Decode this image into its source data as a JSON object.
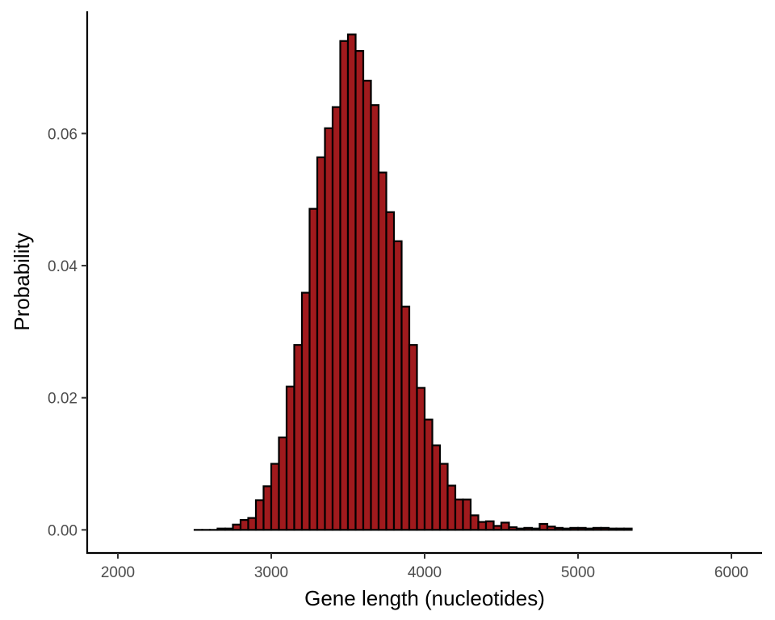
{
  "chart_data": {
    "type": "bar",
    "title": "",
    "xlabel": "Gene length (nucleotides)",
    "ylabel": "Probability",
    "xlim": [
      1800,
      6200
    ],
    "ylim": [
      -0.0035,
      0.0785
    ],
    "x_ticks": [
      2000,
      3000,
      4000,
      5000,
      6000
    ],
    "x_tick_labels": [
      "2000",
      "3000",
      "4000",
      "5000",
      "6000"
    ],
    "y_ticks": [
      0.0,
      0.02,
      0.04,
      0.06
    ],
    "y_tick_labels": [
      "0.00",
      "0.02",
      "0.04",
      "0.06"
    ],
    "grid": false,
    "legend": "none",
    "bin_width": 50,
    "bin_start": 2500,
    "values": [
      0.0,
      0.0,
      0.0,
      0.0002,
      0.0002,
      0.0008,
      0.0015,
      0.0018,
      0.0045,
      0.0066,
      0.01,
      0.014,
      0.0217,
      0.028,
      0.0359,
      0.0486,
      0.0564,
      0.0608,
      0.064,
      0.074,
      0.075,
      0.0725,
      0.068,
      0.0643,
      0.0541,
      0.0481,
      0.0437,
      0.0338,
      0.028,
      0.0215,
      0.0167,
      0.0128,
      0.01,
      0.0067,
      0.0046,
      0.0046,
      0.0022,
      0.0012,
      0.0013,
      0.0006,
      0.0011,
      0.0004,
      0.0002,
      0.0003,
      0.0002,
      0.0009,
      0.0005,
      0.0003,
      0.0002,
      0.0003,
      0.0003,
      0.0002,
      0.0003,
      0.0003,
      0.0002,
      0.0002,
      0.0002
    ],
    "bar_fill": "#a01a1d",
    "bar_stroke": "#000000",
    "axis_color": "#000000"
  }
}
